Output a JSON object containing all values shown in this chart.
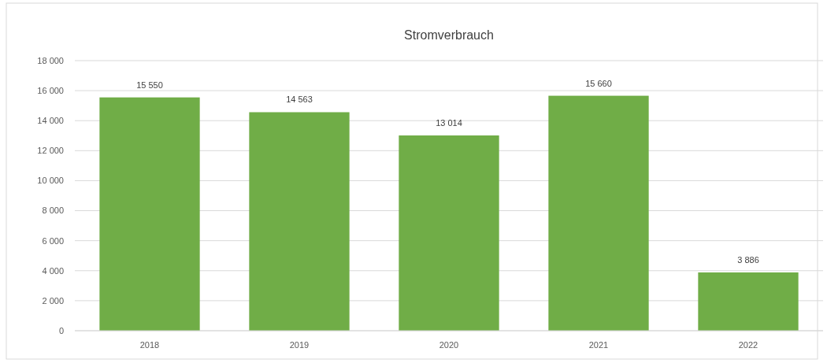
{
  "chart_data": {
    "type": "bar",
    "title": "Stromverbrauch",
    "categories": [
      "2018",
      "2019",
      "2020",
      "2021",
      "2022"
    ],
    "values": [
      15550,
      14563,
      13014,
      15660,
      3886
    ],
    "value_labels": [
      "15 550",
      "14 563",
      "13 014",
      "15 660",
      "3 886"
    ],
    "color": "#70ad47",
    "ylim": [
      0,
      18000
    ],
    "yticks": [
      {
        "value": 0,
        "label": "0"
      },
      {
        "value": 2000,
        "label": "2 000"
      },
      {
        "value": 4000,
        "label": "4 000"
      },
      {
        "value": 6000,
        "label": "6 000"
      },
      {
        "value": 8000,
        "label": "8 000"
      },
      {
        "value": 10000,
        "label": "10 000"
      },
      {
        "value": 12000,
        "label": "12 000"
      },
      {
        "value": 14000,
        "label": "14 000"
      },
      {
        "value": 16000,
        "label": "16 000"
      },
      {
        "value": 18000,
        "label": "18 000"
      }
    ],
    "grid": "y"
  }
}
